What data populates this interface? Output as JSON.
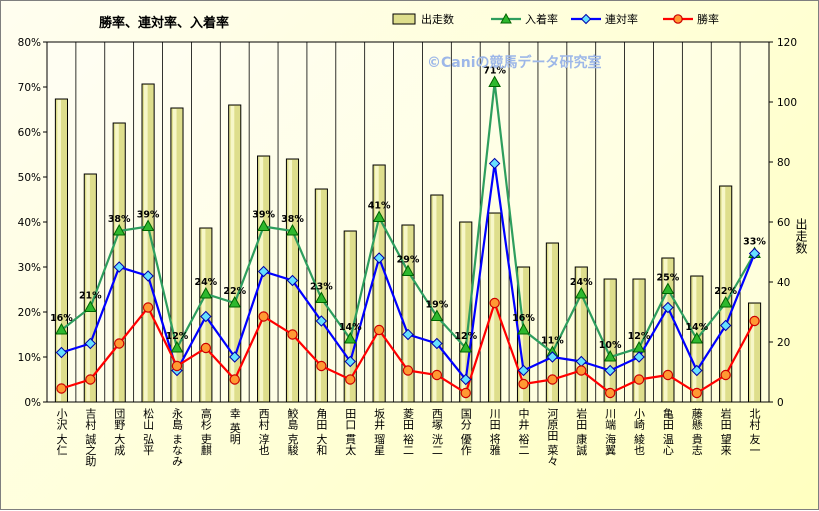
{
  "chart_data": {
    "type": "bar",
    "title": "勝率、連対率、入着率",
    "watermark": "©Caniの競馬データ研究室",
    "ylabel_right": "出走数",
    "ylim_left": [
      0,
      80
    ],
    "ylim_right": [
      0,
      120
    ],
    "left_ticks": [
      "0%",
      "10%",
      "20%",
      "30%",
      "40%",
      "50%",
      "60%",
      "70%",
      "80%"
    ],
    "right_ticks": [
      "0",
      "20",
      "40",
      "60",
      "80",
      "100",
      "120"
    ],
    "grid": true,
    "legend_position": "top",
    "categories": [
      "小沢 大仁",
      "吉村 誠之助",
      "団野 大成",
      "松山 弘平",
      "永島 まなみ",
      "高杉 吏麒",
      "幸 英明",
      "西村 淳也",
      "鮫島 克駿",
      "角田 大和",
      "田口 貫太",
      "坂井 瑠星",
      "菱田 裕二",
      "西塚 洸二",
      "国分 優作",
      "川田 将雅",
      "中井 裕二",
      "河原田 菜々",
      "岩田 康誠",
      "川端 海翼",
      "小崎 綾也",
      "亀田 温心",
      "藤懸 貴志",
      "岩田 望来",
      "北村 友一"
    ],
    "series": [
      {
        "name": "出走数",
        "kind": "bar",
        "axis": "right",
        "color": "#dede8c",
        "values": [
          101,
          76,
          93,
          106,
          98,
          58,
          99,
          82,
          81,
          71,
          57,
          79,
          59,
          69,
          60,
          63,
          45,
          53,
          45,
          41,
          41,
          48,
          42,
          72,
          33
        ]
      },
      {
        "name": "入着率",
        "kind": "line",
        "axis": "left",
        "color": "#2e9e5e",
        "marker": "triangle",
        "values": [
          16,
          21,
          38,
          39,
          12,
          24,
          22,
          39,
          38,
          23,
          14,
          41,
          29,
          19,
          12,
          71,
          16,
          11,
          24,
          10,
          12,
          25,
          14,
          22,
          33
        ]
      },
      {
        "name": "連対率",
        "kind": "line",
        "axis": "left",
        "color": "#0000ff",
        "marker": "diamond",
        "values": [
          11,
          13,
          30,
          28,
          7,
          19,
          10,
          29,
          27,
          18,
          9,
          32,
          15,
          13,
          5,
          53,
          7,
          10,
          9,
          7,
          10,
          21,
          7,
          17,
          33
        ]
      },
      {
        "name": "勝率",
        "kind": "line",
        "axis": "left",
        "color": "#ff0000",
        "marker": "circle",
        "values": [
          3,
          5,
          13,
          21,
          8,
          12,
          5,
          19,
          15,
          8,
          5,
          16,
          7,
          6,
          2,
          22,
          4,
          5,
          7,
          2,
          5,
          6,
          2,
          6,
          18
        ]
      }
    ],
    "data_labels": {
      "series": "入着率",
      "labels": [
        "16%",
        "21%",
        "38%",
        "39%",
        "12%",
        "24%",
        "22%",
        "39%",
        "38%",
        "23%",
        "14%",
        "41%",
        "29%",
        "19%",
        "12%",
        "71%",
        "16%",
        "11%",
        "24%",
        "10%",
        "12%",
        "25%",
        "14%",
        "22%",
        "33%"
      ]
    }
  }
}
